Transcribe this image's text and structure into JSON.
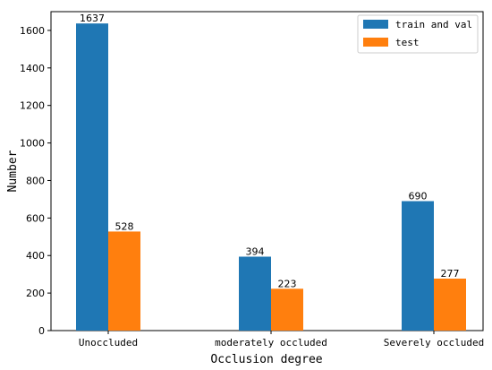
{
  "chart_data": {
    "type": "bar",
    "title": "",
    "xlabel": "Occlusion degree",
    "ylabel": "Number",
    "categories": [
      "Unoccluded",
      "moderately occluded",
      "Severely occluded"
    ],
    "series": [
      {
        "name": "train and val",
        "color": "#1f77b4",
        "values": [
          1637,
          394,
          690
        ]
      },
      {
        "name": "test",
        "color": "#ff7f0e",
        "values": [
          528,
          223,
          277
        ]
      }
    ],
    "ylim": [
      0,
      1700
    ],
    "yticks": [
      0,
      200,
      400,
      600,
      800,
      1000,
      1200,
      1400,
      1600
    ],
    "grid": false,
    "legend_position": "top-right"
  }
}
